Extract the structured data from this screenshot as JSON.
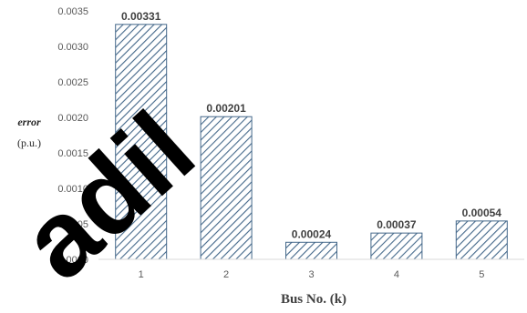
{
  "chart_data": {
    "type": "bar",
    "categories": [
      "1",
      "2",
      "3",
      "4",
      "5"
    ],
    "values": [
      0.00331,
      0.00201,
      0.00024,
      0.00037,
      0.00054
    ],
    "data_labels": [
      "0.00331",
      "0.00201",
      "0.00024",
      "0.00037",
      "0.00054"
    ],
    "xlabel": "Bus No. (k)",
    "ylabel": "error",
    "ylabel_unit": "(p.u.)",
    "ylim": [
      0,
      0.0035
    ],
    "yticks": [
      "0.0000",
      "0.0005",
      "0.0010",
      "0.0015",
      "0.0020",
      "0.0025",
      "0.0030",
      "0.0035"
    ],
    "bar_fill": "diagonal-hatch",
    "bar_color": "#44688a",
    "grid": false,
    "legend": "none"
  },
  "watermark": {
    "text": "adil",
    "color": "#000000"
  }
}
